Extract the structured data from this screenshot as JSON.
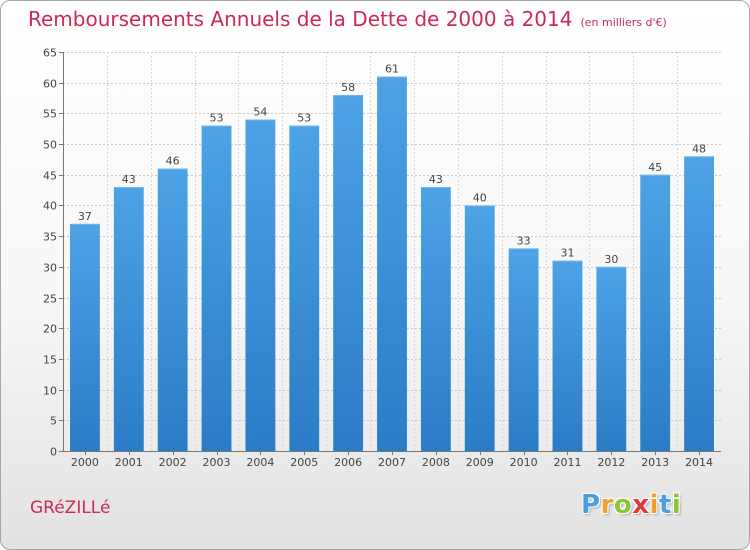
{
  "chart_data": {
    "type": "bar",
    "title": "Remboursements Annuels de la Dette de 2000 à 2014",
    "subtitle": "(en milliers d'€)",
    "categories": [
      "2000",
      "2001",
      "2002",
      "2003",
      "2004",
      "2005",
      "2006",
      "2007",
      "2008",
      "2009",
      "2010",
      "2011",
      "2012",
      "2013",
      "2014"
    ],
    "values": [
      37,
      43,
      46,
      53,
      54,
      53,
      58,
      61,
      43,
      40,
      33,
      31,
      30,
      45,
      48
    ],
    "ylim": [
      0,
      65
    ],
    "yticks": [
      0,
      5,
      10,
      15,
      20,
      25,
      30,
      35,
      40,
      45,
      50,
      55,
      60,
      65
    ],
    "grid": true,
    "bar_color": "#3a8fd6"
  },
  "footer": {
    "city": "GRéZILLé",
    "logo_letters": [
      "P",
      "r",
      "o",
      "x",
      "i",
      "t",
      "i"
    ],
    "logo_colors": [
      "#4a9fe0",
      "#f0a030",
      "#8cc43c",
      "#e23a3a",
      "#f0a030",
      "#4a9fe0",
      "#8cc43c"
    ]
  }
}
